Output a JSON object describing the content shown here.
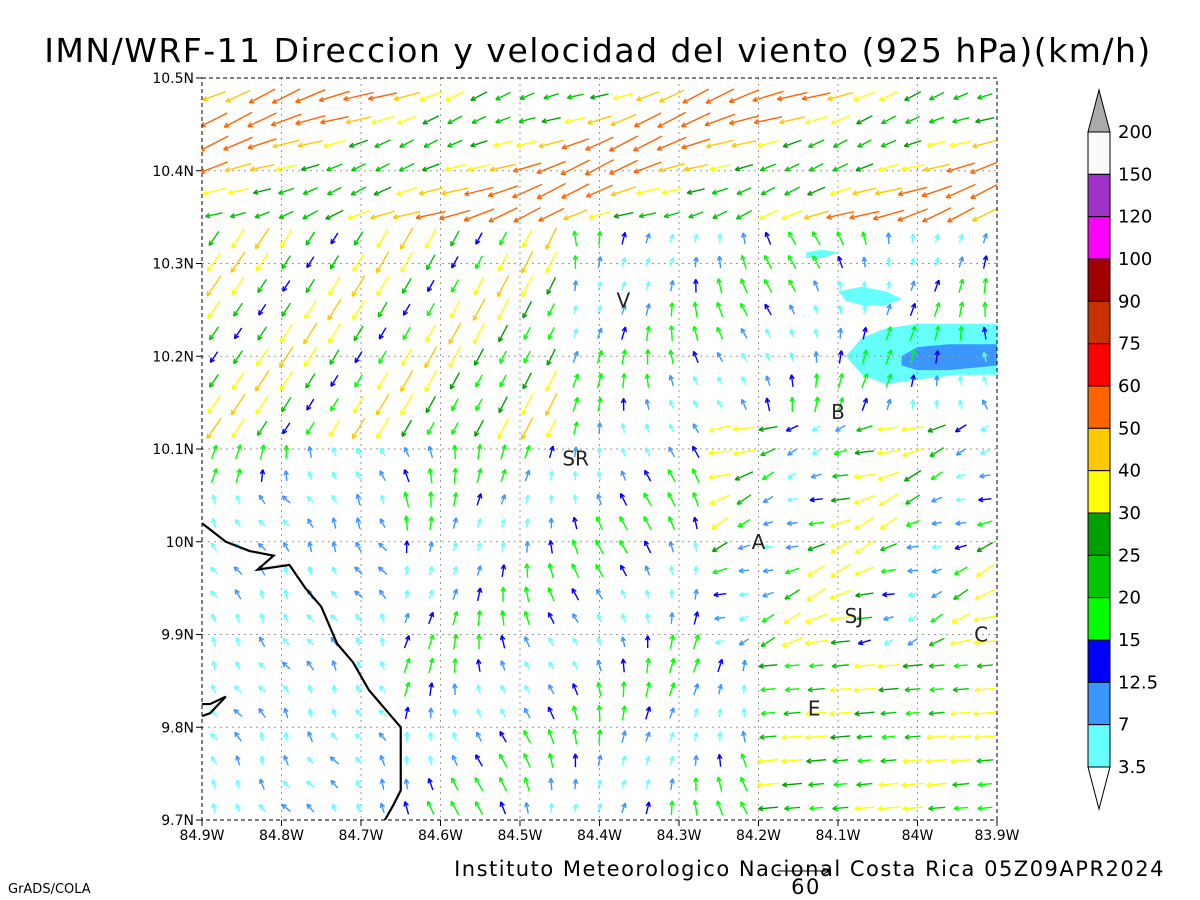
{
  "title": "IMN/WRF-11 Direccion y velocidad del viento (925 hPa)(km/h)",
  "footer": "Instituto Meteorologico Nacional Costa Rica 05Z09APR2024",
  "credit": "GrADS/COLA",
  "reference_vector_label": "60",
  "map": {
    "lon_range": [
      -84.9,
      -83.9
    ],
    "lat_range": [
      9.7,
      10.5
    ],
    "lon_ticks": [
      "84.9W",
      "84.8W",
      "84.7W",
      "84.6W",
      "84.5W",
      "84.4W",
      "84.3W",
      "84.2W",
      "84.1W",
      "84W",
      "83.9W"
    ],
    "lat_ticks": [
      "10.5N",
      "10.4N",
      "10.3N",
      "10.2N",
      "10.1N",
      "10N",
      "9.9N",
      "9.8N",
      "9.7N"
    ],
    "grid": true,
    "places": [
      {
        "label": "V",
        "lon": -84.37,
        "lat": 10.26
      },
      {
        "label": "SR",
        "lon": -84.43,
        "lat": 10.09
      },
      {
        "label": "B",
        "lon": -84.1,
        "lat": 10.14
      },
      {
        "label": "A",
        "lon": -84.2,
        "lat": 10.0
      },
      {
        "label": "SJ",
        "lon": -84.08,
        "lat": 9.92
      },
      {
        "label": "C",
        "lon": -83.92,
        "lat": 9.9
      },
      {
        "label": "E",
        "lon": -84.13,
        "lat": 9.82
      }
    ],
    "coastline": [
      [
        -84.9,
        10.02
      ],
      [
        -84.87,
        10.0
      ],
      [
        -84.84,
        9.99
      ],
      [
        -84.81,
        9.985
      ],
      [
        -84.83,
        9.97
      ],
      [
        -84.79,
        9.975
      ],
      [
        -84.77,
        9.95
      ],
      [
        -84.75,
        9.93
      ],
      [
        -84.74,
        9.91
      ],
      [
        -84.73,
        9.89
      ],
      [
        -84.71,
        9.87
      ],
      [
        -84.69,
        9.84
      ],
      [
        -84.67,
        9.82
      ],
      [
        -84.65,
        9.8
      ],
      [
        -84.65,
        9.78
      ],
      [
        -84.65,
        9.755
      ],
      [
        -84.65,
        9.732
      ],
      [
        -84.66,
        9.715
      ],
      [
        -84.67,
        9.7
      ]
    ],
    "coast_spur": [
      [
        -84.9,
        9.825
      ],
      [
        -84.89,
        9.825
      ],
      [
        -84.87,
        9.833
      ],
      [
        -84.89,
        9.815
      ],
      [
        -84.9,
        9.812
      ]
    ],
    "shaded_regions": [
      {
        "bin": "3.5-7",
        "color": "#65ffff",
        "points": [
          [
            -84.14,
            10.312
          ],
          [
            -84.12,
            10.315
          ],
          [
            -84.1,
            10.312
          ],
          [
            -84.12,
            10.306
          ],
          [
            -84.14,
            10.306
          ]
        ]
      },
      {
        "bin": "3.5-7",
        "color": "#65ffff",
        "points": [
          [
            -84.1,
            10.27
          ],
          [
            -84.07,
            10.275
          ],
          [
            -84.04,
            10.27
          ],
          [
            -84.02,
            10.262
          ],
          [
            -84.04,
            10.255
          ],
          [
            -84.07,
            10.255
          ],
          [
            -84.09,
            10.26
          ]
        ]
      },
      {
        "bin": "3.5-7",
        "color": "#65ffff",
        "points": [
          [
            -84.09,
            10.2
          ],
          [
            -84.07,
            10.22
          ],
          [
            -84.04,
            10.23
          ],
          [
            -84.0,
            10.235
          ],
          [
            -83.95,
            10.235
          ],
          [
            -83.9,
            10.235
          ],
          [
            -83.9,
            10.18
          ],
          [
            -83.95,
            10.18
          ],
          [
            -84.0,
            10.175
          ],
          [
            -84.04,
            10.17
          ],
          [
            -84.07,
            10.18
          ],
          [
            -84.08,
            10.19
          ]
        ]
      },
      {
        "bin": "7-12.5",
        "color": "#3c96ff",
        "points": [
          [
            -84.02,
            10.2
          ],
          [
            -84.0,
            10.21
          ],
          [
            -83.96,
            10.213
          ],
          [
            -83.9,
            10.213
          ],
          [
            -83.9,
            10.19
          ],
          [
            -83.96,
            10.185
          ],
          [
            -84.0,
            10.185
          ],
          [
            -84.02,
            10.19
          ]
        ]
      }
    ]
  },
  "colorbar": {
    "labels": [
      "200",
      "150",
      "120",
      "100",
      "90",
      "75",
      "60",
      "50",
      "40",
      "30",
      "25",
      "20",
      "15",
      "12.5",
      "7",
      "3.5"
    ],
    "colors": [
      "#fafafa",
      "#a032c8",
      "#ff00fa",
      "#a00000",
      "#c83200",
      "#ff0000",
      "#ff6400",
      "#ffc800",
      "#ffff00",
      "#00a000",
      "#00c800",
      "#00ff00",
      "#0000ff",
      "#3c96ff",
      "#65ffff"
    ],
    "top_color": "#aaaaaa",
    "bottom_color": "#ffffff"
  }
}
